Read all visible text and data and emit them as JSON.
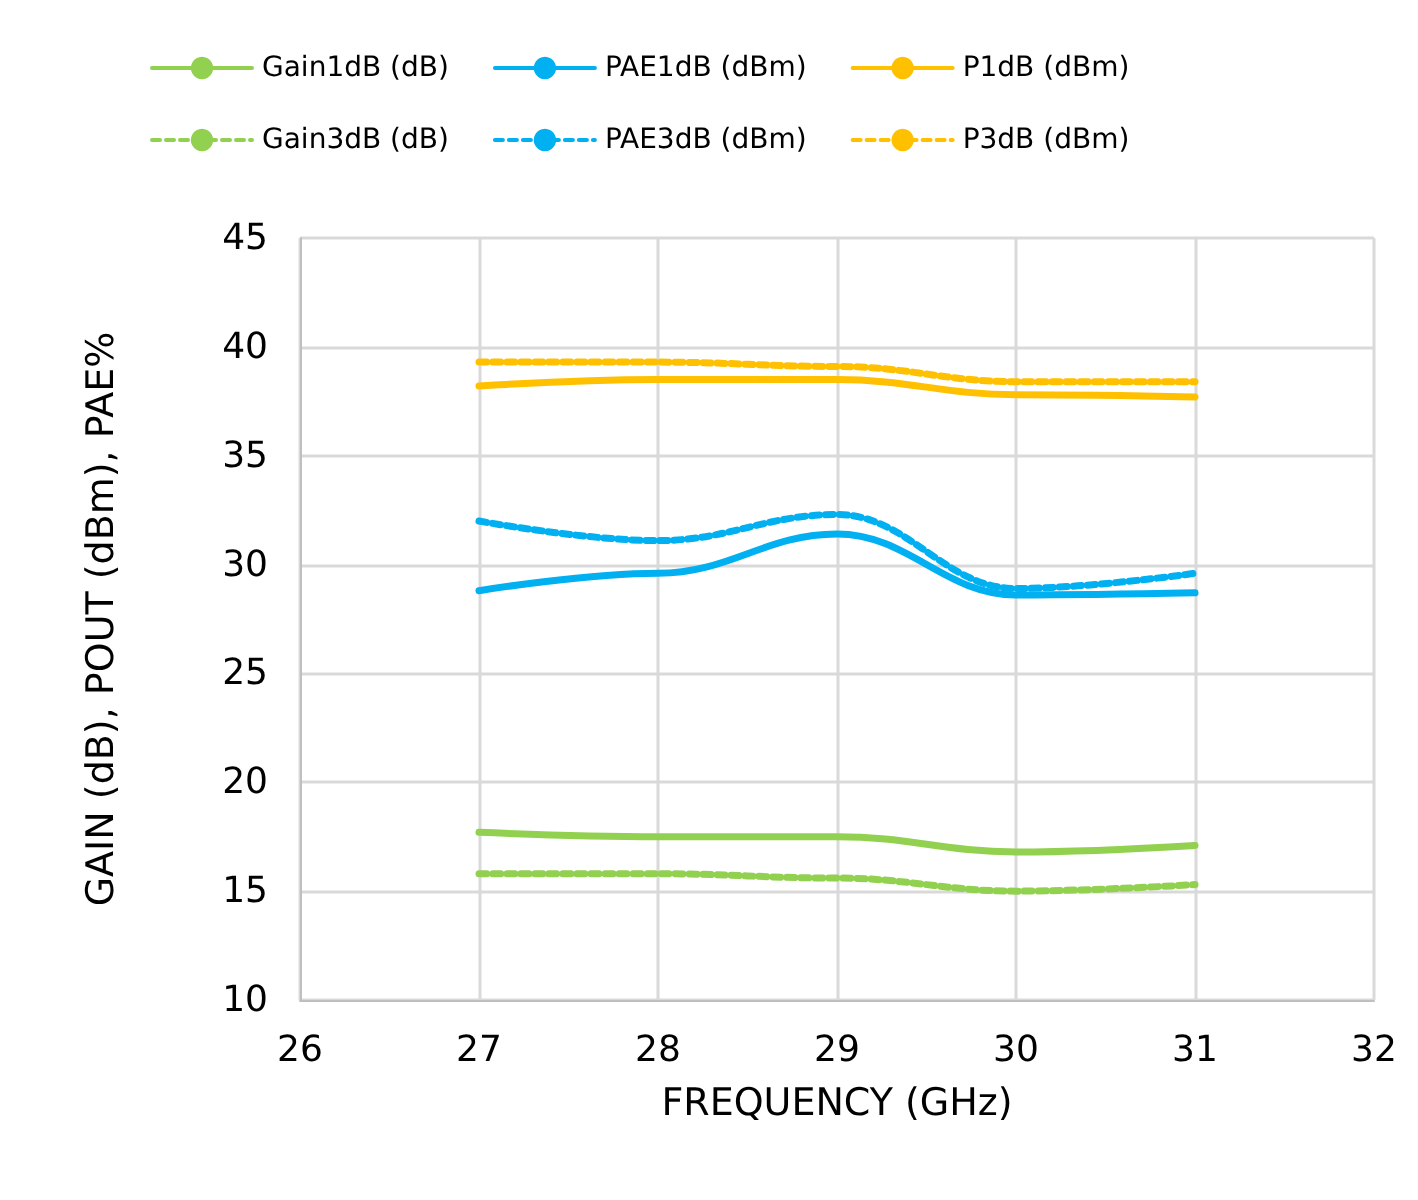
{
  "chart_data": {
    "type": "line",
    "xlabel": "FREQUENCY (GHz)",
    "ylabel": "GAIN (dB), POUT (dBm), PAE%",
    "x": [
      27,
      28,
      29,
      30,
      31
    ],
    "xlim": [
      26,
      32
    ],
    "xticks": [
      26,
      27,
      28,
      29,
      30,
      31,
      32
    ],
    "ylim": [
      10,
      45
    ],
    "yticks": [
      10,
      15,
      20,
      25,
      30,
      35,
      40,
      45
    ],
    "grid": true,
    "legend": "top",
    "marker": "none",
    "series": [
      {
        "name": "Gain1dB (dB)",
        "color": "#92d050",
        "line_style": "solid",
        "values": [
          17.7,
          17.5,
          17.5,
          16.8,
          17.1
        ]
      },
      {
        "name": "PAE1dB (dBm)",
        "color": "#00b0f0",
        "line_style": "solid",
        "values": [
          28.8,
          29.6,
          31.4,
          28.6,
          28.7
        ]
      },
      {
        "name": "P1dB (dBm)",
        "color": "#ffc000",
        "line_style": "solid",
        "values": [
          38.2,
          38.5,
          38.5,
          37.8,
          37.7
        ]
      },
      {
        "name": "Gain3dB (dB)",
        "color": "#92d050",
        "line_style": "dashed",
        "values": [
          15.8,
          15.8,
          15.6,
          15.0,
          15.3
        ]
      },
      {
        "name": "PAE3dB (dBm)",
        "color": "#00b0f0",
        "line_style": "dashed",
        "values": [
          32.0,
          31.1,
          32.3,
          28.9,
          29.6
        ]
      },
      {
        "name": "P3dB (dBm)",
        "color": "#ffc000",
        "line_style": "dashed",
        "values": [
          39.3,
          39.3,
          39.1,
          38.4,
          38.4
        ]
      }
    ]
  }
}
